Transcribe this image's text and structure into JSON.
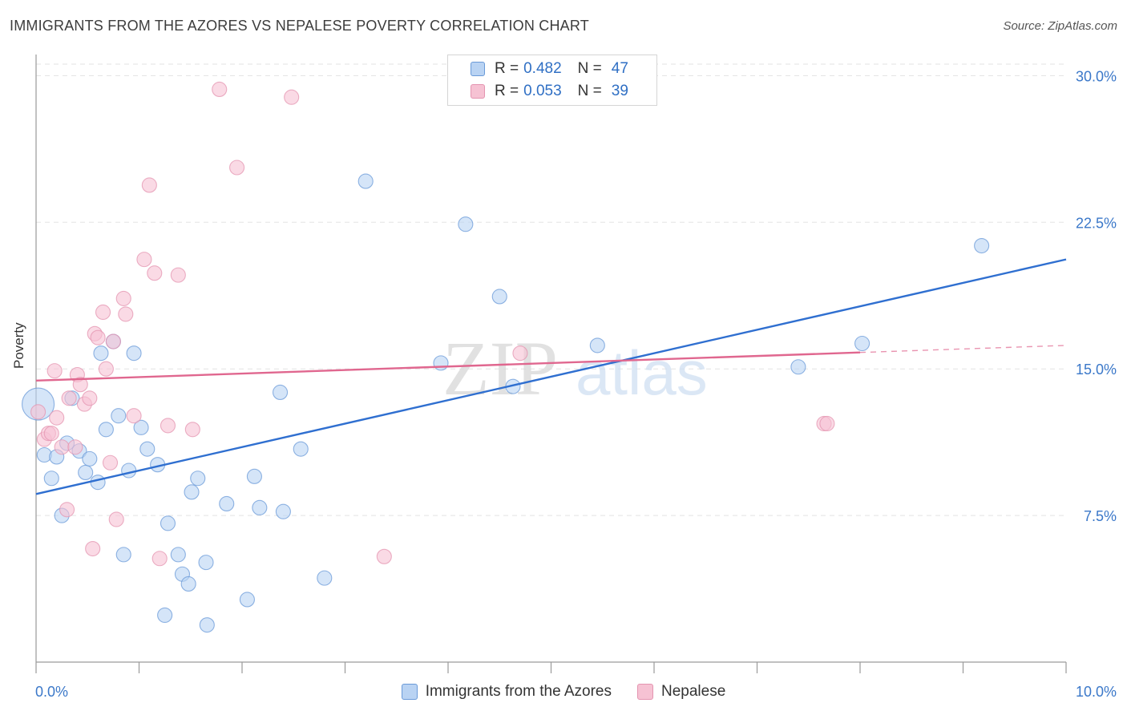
{
  "header": {
    "title": "IMMIGRANTS FROM THE AZORES VS NEPALESE POVERTY CORRELATION CHART",
    "source": "Source: ZipAtlas.com"
  },
  "watermark": {
    "zip": "ZIP",
    "atlas": "atlas"
  },
  "legend": {
    "r_label": "R =",
    "n_label": "N =",
    "series": [
      {
        "r": "0.482",
        "n": "47"
      },
      {
        "r": "0.053",
        "n": "39"
      }
    ]
  },
  "bottom_legend": {
    "items": [
      "Immigrants from the Azores",
      "Nepalese"
    ]
  },
  "colors": {
    "blue_fill": "#b9d3f3",
    "blue_stroke": "#6a9ad8",
    "blue_line": "#2f6fd0",
    "pink_fill": "#f6c2d3",
    "pink_stroke": "#e494b0",
    "pink_line": "#e0678f",
    "tick_text": "#3b78c9"
  },
  "chart_data": {
    "type": "scatter",
    "title": "IMMIGRANTS FROM THE AZORES VS NEPALESE POVERTY CORRELATION CHART",
    "xlabel": "",
    "ylabel": "Poverty",
    "xlim": [
      0,
      10
    ],
    "ylim": [
      0,
      31
    ],
    "x_ticks": [
      0,
      1,
      2,
      3,
      4,
      5,
      6,
      7,
      8,
      9,
      10
    ],
    "x_tick_labels": [
      "0.0%",
      "10.0%"
    ],
    "y_ticks": [
      7.5,
      15.0,
      22.5,
      30.0
    ],
    "y_tick_labels": [
      "7.5%",
      "15.0%",
      "22.5%",
      "30.0%"
    ],
    "grid": true,
    "series": [
      {
        "name": "Immigrants from the Azores",
        "r": 0.482,
        "n": 47,
        "trend": {
          "x": [
            0,
            10
          ],
          "y": [
            8.6,
            20.6
          ],
          "dashed_from": null
        },
        "points": [
          [
            0.02,
            13.2
          ],
          [
            0.08,
            10.6
          ],
          [
            0.15,
            9.4
          ],
          [
            0.2,
            10.5
          ],
          [
            0.25,
            7.5
          ],
          [
            0.3,
            11.2
          ],
          [
            0.35,
            13.5
          ],
          [
            0.42,
            10.8
          ],
          [
            0.48,
            9.7
          ],
          [
            0.52,
            10.4
          ],
          [
            0.6,
            9.2
          ],
          [
            0.63,
            15.8
          ],
          [
            0.68,
            11.9
          ],
          [
            0.75,
            16.4
          ],
          [
            0.8,
            12.6
          ],
          [
            0.85,
            5.5
          ],
          [
            0.9,
            9.8
          ],
          [
            0.95,
            15.8
          ],
          [
            1.02,
            12.0
          ],
          [
            1.08,
            10.9
          ],
          [
            1.18,
            10.1
          ],
          [
            1.25,
            2.4
          ],
          [
            1.28,
            7.1
          ],
          [
            1.38,
            5.5
          ],
          [
            1.42,
            4.5
          ],
          [
            1.48,
            4.0
          ],
          [
            1.51,
            8.7
          ],
          [
            1.57,
            9.4
          ],
          [
            1.65,
            5.1
          ],
          [
            1.66,
            1.9
          ],
          [
            1.85,
            8.1
          ],
          [
            2.05,
            3.2
          ],
          [
            2.12,
            9.5
          ],
          [
            2.17,
            7.9
          ],
          [
            2.37,
            13.8
          ],
          [
            2.4,
            7.7
          ],
          [
            2.57,
            10.9
          ],
          [
            2.8,
            4.3
          ],
          [
            3.2,
            24.6
          ],
          [
            3.93,
            15.3
          ],
          [
            4.17,
            22.4
          ],
          [
            4.5,
            18.7
          ],
          [
            4.63,
            14.1
          ],
          [
            5.45,
            16.2
          ],
          [
            7.4,
            15.1
          ],
          [
            8.02,
            16.3
          ],
          [
            9.18,
            21.3
          ]
        ]
      },
      {
        "name": "Nepalese",
        "r": 0.053,
        "n": 39,
        "trend": {
          "x": [
            0,
            10
          ],
          "y": [
            14.4,
            16.2
          ],
          "dashed_from": 8.0
        },
        "points": [
          [
            0.02,
            12.8
          ],
          [
            0.08,
            11.4
          ],
          [
            0.12,
            11.7
          ],
          [
            0.15,
            11.7
          ],
          [
            0.18,
            14.9
          ],
          [
            0.2,
            12.5
          ],
          [
            0.25,
            11.0
          ],
          [
            0.3,
            7.8
          ],
          [
            0.32,
            13.5
          ],
          [
            0.38,
            11.0
          ],
          [
            0.4,
            14.7
          ],
          [
            0.43,
            14.2
          ],
          [
            0.47,
            13.2
          ],
          [
            0.52,
            13.5
          ],
          [
            0.55,
            5.8
          ],
          [
            0.57,
            16.8
          ],
          [
            0.6,
            16.6
          ],
          [
            0.65,
            17.9
          ],
          [
            0.68,
            15.0
          ],
          [
            0.72,
            10.2
          ],
          [
            0.75,
            16.4
          ],
          [
            0.78,
            7.3
          ],
          [
            0.85,
            18.6
          ],
          [
            0.87,
            17.8
          ],
          [
            0.95,
            12.6
          ],
          [
            1.05,
            20.6
          ],
          [
            1.1,
            24.4
          ],
          [
            1.15,
            19.9
          ],
          [
            1.2,
            5.3
          ],
          [
            1.28,
            12.1
          ],
          [
            1.38,
            19.8
          ],
          [
            1.52,
            11.9
          ],
          [
            1.78,
            29.3
          ],
          [
            1.95,
            25.3
          ],
          [
            2.48,
            28.9
          ],
          [
            3.38,
            5.4
          ],
          [
            4.7,
            15.8
          ],
          [
            7.65,
            12.2
          ],
          [
            7.68,
            12.2
          ]
        ]
      }
    ]
  }
}
